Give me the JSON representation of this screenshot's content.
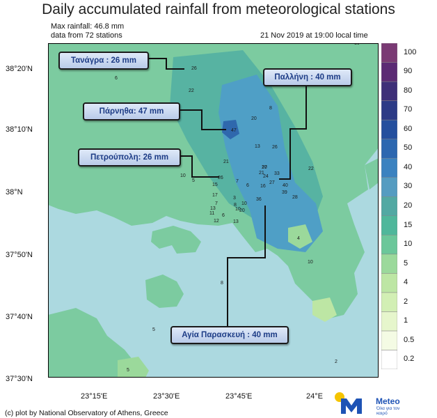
{
  "title": "Daily accumulated rainfall from meteorological stations",
  "max_rainfall": "Max rainfall: 46.8 mm",
  "stations_note": "data from 72 stations",
  "datetime": "21 Nov 2019 at 19:00 local time",
  "credit": "(c) plot by National Observatory of Athens, Greece",
  "logo": {
    "text": "Meteo",
    "tagline": "Όλα για τον καιρό",
    "color": "#1e53b5",
    "accent": "#f5c400"
  },
  "lat_labels": [
    "38°20'N",
    "38°10'N",
    "38°N",
    "37°50'N",
    "37°40'N",
    "37°30'N"
  ],
  "lon_labels": [
    "23°15'E",
    "23°30'E",
    "23°45'E",
    "24°E"
  ],
  "colorbar": {
    "labels": [
      "0.2",
      "0.5",
      "1",
      "2",
      "4",
      "5",
      "10",
      "15",
      "20",
      "30",
      "40",
      "50",
      "60",
      "70",
      "80",
      "90",
      "100"
    ],
    "colors": [
      "#ffffff",
      "#f4fbe4",
      "#e6f6cc",
      "#d2efb4",
      "#bde6a4",
      "#9bd99b",
      "#6bc79a",
      "#4fb79b",
      "#52a9a3",
      "#559cc1",
      "#3b82c0",
      "#2c67b0",
      "#244f9e",
      "#2c3a86",
      "#3e2f78",
      "#5b2a74",
      "#7a3a74"
    ]
  },
  "callouts": [
    {
      "label": "Τανάγρα : 26 mm"
    },
    {
      "label": "Πάρνηθα: 47 mm"
    },
    {
      "label": "Πετρούπολη: 26 mm"
    },
    {
      "label": "Παλλήνη : 40 mm"
    },
    {
      "label": "Αγία Παρασκευή : 40 mm"
    }
  ],
  "stations": [
    {
      "v": "10"
    },
    {
      "v": "26"
    },
    {
      "v": "6"
    },
    {
      "v": "22"
    },
    {
      "v": "8"
    },
    {
      "v": "20"
    },
    {
      "v": "47"
    },
    {
      "v": "13"
    },
    {
      "v": "26"
    },
    {
      "v": "21"
    },
    {
      "v": "10"
    },
    {
      "v": "5"
    },
    {
      "v": "15"
    },
    {
      "v": "26"
    },
    {
      "v": "20"
    },
    {
      "v": "17"
    },
    {
      "v": "21"
    },
    {
      "v": "24"
    },
    {
      "v": "33"
    },
    {
      "v": "22"
    },
    {
      "v": "7"
    },
    {
      "v": "6"
    },
    {
      "v": "16"
    },
    {
      "v": "27"
    },
    {
      "v": "40"
    },
    {
      "v": "39"
    },
    {
      "v": "28"
    },
    {
      "v": "17"
    },
    {
      "v": "7"
    },
    {
      "v": "3"
    },
    {
      "v": "8"
    },
    {
      "v": "10"
    },
    {
      "v": "36"
    },
    {
      "v": "10"
    },
    {
      "v": "20"
    },
    {
      "v": "13"
    },
    {
      "v": "11"
    },
    {
      "v": "6"
    },
    {
      "v": "12"
    },
    {
      "v": "4"
    },
    {
      "v": "10"
    },
    {
      "v": "8"
    },
    {
      "v": "5"
    },
    {
      "v": "13"
    },
    {
      "v": "2"
    },
    {
      "v": "5"
    }
  ],
  "colors": {
    "sea": "#acd9e0",
    "land_low": "#7ccba0",
    "land_mid": "#57b3a2",
    "land_high": "#4f9fc6",
    "land_peak": "#2f68ad",
    "callout_border": "#1a1a1a",
    "callout_text": "#1d3c86"
  }
}
